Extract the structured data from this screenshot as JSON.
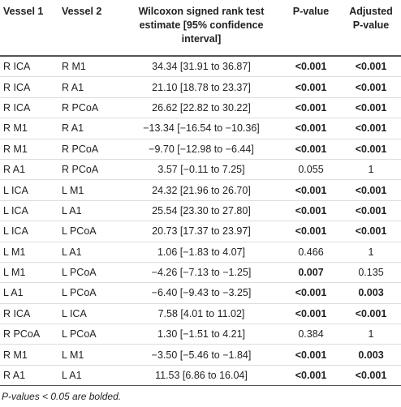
{
  "table": {
    "header": [
      "Vessel 1",
      "Vessel 2",
      "Wilcoxon signed rank test estimate [95% confidence interval]",
      "P-value",
      "Adjusted P-value"
    ],
    "rows": [
      {
        "cells": [
          "R ICA",
          "R M1",
          "34.34 [31.91 to 36.87]",
          "<0.001",
          "<0.001"
        ],
        "bold": [
          false,
          false,
          false,
          true,
          true
        ]
      },
      {
        "cells": [
          "R ICA",
          "R A1",
          "21.10 [18.78 to 23.37]",
          "<0.001",
          "<0.001"
        ],
        "bold": [
          false,
          false,
          false,
          true,
          true
        ]
      },
      {
        "cells": [
          "R ICA",
          "R PCoA",
          "26.62 [22.82 to 30.22]",
          "<0.001",
          "<0.001"
        ],
        "bold": [
          false,
          false,
          false,
          true,
          true
        ]
      },
      {
        "cells": [
          "R M1",
          "R A1",
          "−13.34 [−16.54 to −10.36]",
          "<0.001",
          "<0.001"
        ],
        "bold": [
          false,
          false,
          false,
          true,
          true
        ]
      },
      {
        "cells": [
          "R M1",
          "R PCoA",
          "−9.70 [−12.98 to −6.44]",
          "<0.001",
          "<0.001"
        ],
        "bold": [
          false,
          false,
          false,
          true,
          true
        ]
      },
      {
        "cells": [
          "R A1",
          "R PCoA",
          "3.57 [−0.11 to 7.25]",
          "0.055",
          "1"
        ],
        "bold": [
          false,
          false,
          false,
          false,
          false
        ]
      },
      {
        "cells": [
          "L ICA",
          "L M1",
          "24.32 [21.96 to 26.70]",
          "<0.001",
          "<0.001"
        ],
        "bold": [
          false,
          false,
          false,
          true,
          true
        ]
      },
      {
        "cells": [
          "L ICA",
          "L A1",
          "25.54 [23.30 to 27.80]",
          "<0.001",
          "<0.001"
        ],
        "bold": [
          false,
          false,
          false,
          true,
          true
        ]
      },
      {
        "cells": [
          "L ICA",
          "L PCoA",
          "20.73 [17.37 to 23.97]",
          "<0.001",
          "<0.001"
        ],
        "bold": [
          false,
          false,
          false,
          true,
          true
        ]
      },
      {
        "cells": [
          "L M1",
          "L A1",
          "1.06 [−1.83 to 4.07]",
          "0.466",
          "1"
        ],
        "bold": [
          false,
          false,
          false,
          false,
          false
        ]
      },
      {
        "cells": [
          "L M1",
          "L PCoA",
          "−4.26 [−7.13 to −1.25]",
          "0.007",
          "0.135"
        ],
        "bold": [
          false,
          false,
          false,
          true,
          false
        ]
      },
      {
        "cells": [
          "L A1",
          "L PCoA",
          "−6.40 [−9.43 to −3.25]",
          "<0.001",
          "0.003"
        ],
        "bold": [
          false,
          false,
          false,
          true,
          true
        ]
      },
      {
        "cells": [
          "R ICA",
          "L ICA",
          "7.58 [4.01 to 11.02]",
          "<0.001",
          "<0.001"
        ],
        "bold": [
          false,
          false,
          false,
          true,
          true
        ]
      },
      {
        "cells": [
          "R PCoA",
          "L PCoA",
          "1.30 [−1.51 to 4.21]",
          "0.384",
          "1"
        ],
        "bold": [
          false,
          false,
          false,
          false,
          false
        ]
      },
      {
        "cells": [
          "R M1",
          "L M1",
          "−3.50 [−5.46 to −1.84]",
          "<0.001",
          "0.003"
        ],
        "bold": [
          false,
          false,
          false,
          true,
          true
        ]
      },
      {
        "cells": [
          "R A1",
          "L A1",
          "11.53 [6.86 to 16.04]",
          "<0.001",
          "<0.001"
        ],
        "bold": [
          false,
          false,
          false,
          true,
          true
        ]
      }
    ],
    "footnote": "P-values < 0.05 are bolded."
  }
}
